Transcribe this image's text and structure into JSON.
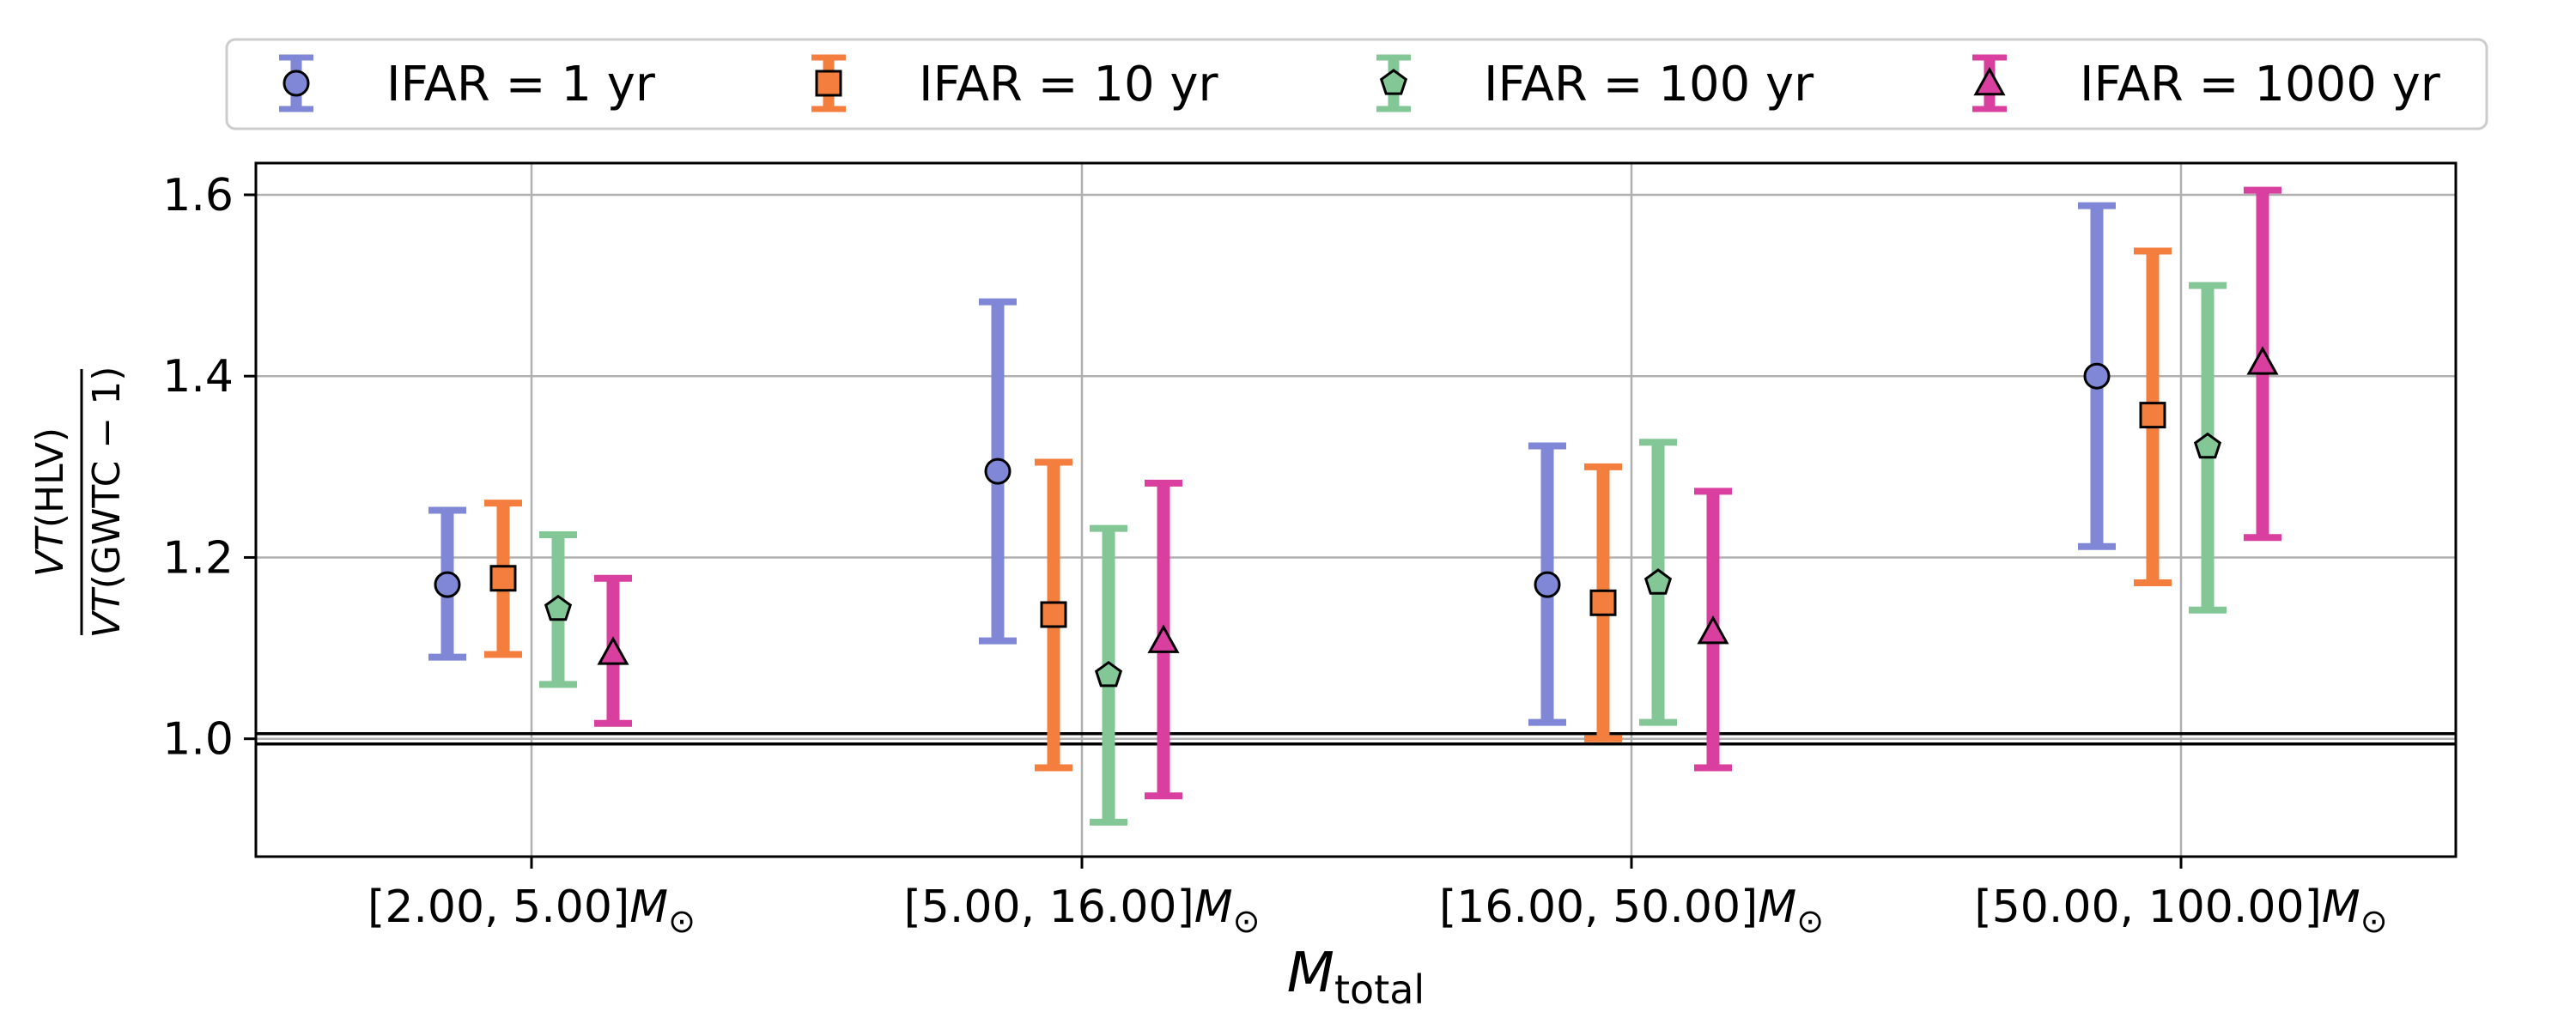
{
  "chart_data": {
    "type": "scatter",
    "categories": [
      {
        "lo": "2.00",
        "hi": "5.00"
      },
      {
        "lo": "5.00",
        "hi": "16.00"
      },
      {
        "lo": "16.00",
        "hi": "50.00"
      },
      {
        "lo": "50.00",
        "hi": "100.00"
      }
    ],
    "mass_unit_symbol": "M",
    "mass_unit_sub": "⊙",
    "xlabel": {
      "base": "M",
      "sub": "total"
    },
    "ylabel": {
      "num": {
        "italic": "VT",
        "rest": "(HLV)"
      },
      "den": {
        "italic": "VT",
        "rest": "(GWTC − 1)"
      }
    },
    "ylim": [
      0.87,
      1.635
    ],
    "yticks": [
      1.0,
      1.2,
      1.4,
      1.6
    ],
    "ytick_labels": [
      "1.0",
      "1.2",
      "1.4",
      "1.6"
    ],
    "reference_line": 1.0,
    "grid": true,
    "legend_position": "top",
    "series": [
      {
        "name": "IFAR = 1 yr",
        "color": "#7f87d6",
        "marker": "circle",
        "values": [
          1.17,
          1.295,
          1.17,
          1.4
        ],
        "lower": [
          1.09,
          1.108,
          1.018,
          1.212
        ],
        "upper": [
          1.252,
          1.482,
          1.323,
          1.588
        ]
      },
      {
        "name": "IFAR = 10 yr",
        "color": "#f47e3e",
        "marker": "square",
        "values": [
          1.177,
          1.137,
          1.15,
          1.357
        ],
        "lower": [
          1.093,
          0.968,
          1.0,
          1.172
        ],
        "upper": [
          1.26,
          1.305,
          1.3,
          1.538
        ]
      },
      {
        "name": "IFAR = 100 yr",
        "color": "#84c797",
        "marker": "pentagon",
        "values": [
          1.143,
          1.07,
          1.172,
          1.322
        ],
        "lower": [
          1.06,
          0.908,
          1.018,
          1.142
        ],
        "upper": [
          1.225,
          1.232,
          1.327,
          1.5
        ]
      },
      {
        "name": "IFAR = 1000 yr",
        "color": "#d93f9f",
        "marker": "triangle",
        "values": [
          1.095,
          1.108,
          1.118,
          1.415
        ],
        "lower": [
          1.017,
          0.937,
          0.968,
          1.222
        ],
        "upper": [
          1.177,
          1.282,
          1.273,
          1.605
        ]
      }
    ]
  }
}
